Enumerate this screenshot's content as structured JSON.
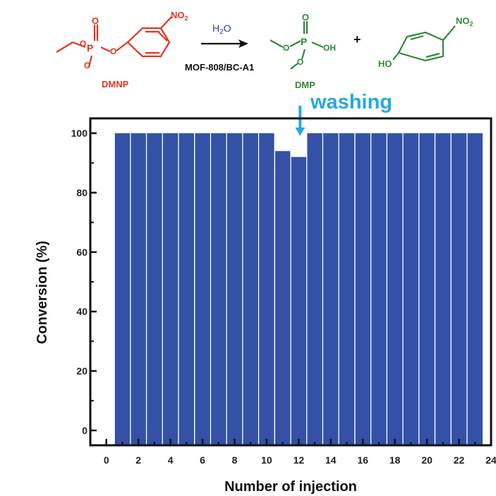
{
  "scheme": {
    "reactant": {
      "name": "DMNP",
      "no2": "NO",
      "no2_sub": "2",
      "color": "#e8321e"
    },
    "reagent": {
      "h2o_h": "H",
      "h2o_sub": "2",
      "h2o_o": "O",
      "catalyst": "MOF-808/BC-A1",
      "color": "#2b3a9c"
    },
    "product1": {
      "name": "DMP",
      "oh": "OH",
      "o_top": "O",
      "p": "P",
      "color": "#2f8a35"
    },
    "plus": "+",
    "product2": {
      "ho": "HO",
      "no2": "NO",
      "no2_sub": "2",
      "color": "#2f8a35"
    }
  },
  "annotation": {
    "text": "washing",
    "color": "#29a8df",
    "at_injection": 12
  },
  "chart_data": {
    "type": "bar",
    "xlabel": "Number of injection",
    "ylabel": "Conversion (%)",
    "xlim": [
      -1,
      24
    ],
    "ylim": [
      -5,
      105
    ],
    "x_ticks": [
      0,
      2,
      4,
      6,
      8,
      10,
      12,
      14,
      16,
      18,
      20,
      22,
      24
    ],
    "x_tick_labels": [
      "0",
      "2",
      "4",
      "6",
      "8",
      "10",
      "12",
      "14",
      "16",
      "18",
      "20",
      "22",
      "24"
    ],
    "y_ticks": [
      0,
      20,
      40,
      60,
      80,
      100
    ],
    "y_tick_labels": [
      "0",
      "20",
      "40",
      "60",
      "80",
      "100"
    ],
    "bar_color": "#3451a7",
    "x": [
      1,
      2,
      3,
      4,
      5,
      6,
      7,
      8,
      9,
      10,
      11,
      12,
      13,
      14,
      15,
      16,
      17,
      18,
      19,
      20,
      21,
      22,
      23
    ],
    "values": [
      100,
      100,
      100,
      100,
      100,
      100,
      100,
      100,
      100,
      100,
      94,
      92,
      100,
      100,
      100,
      100,
      100,
      100,
      100,
      100,
      100,
      100,
      100
    ]
  }
}
